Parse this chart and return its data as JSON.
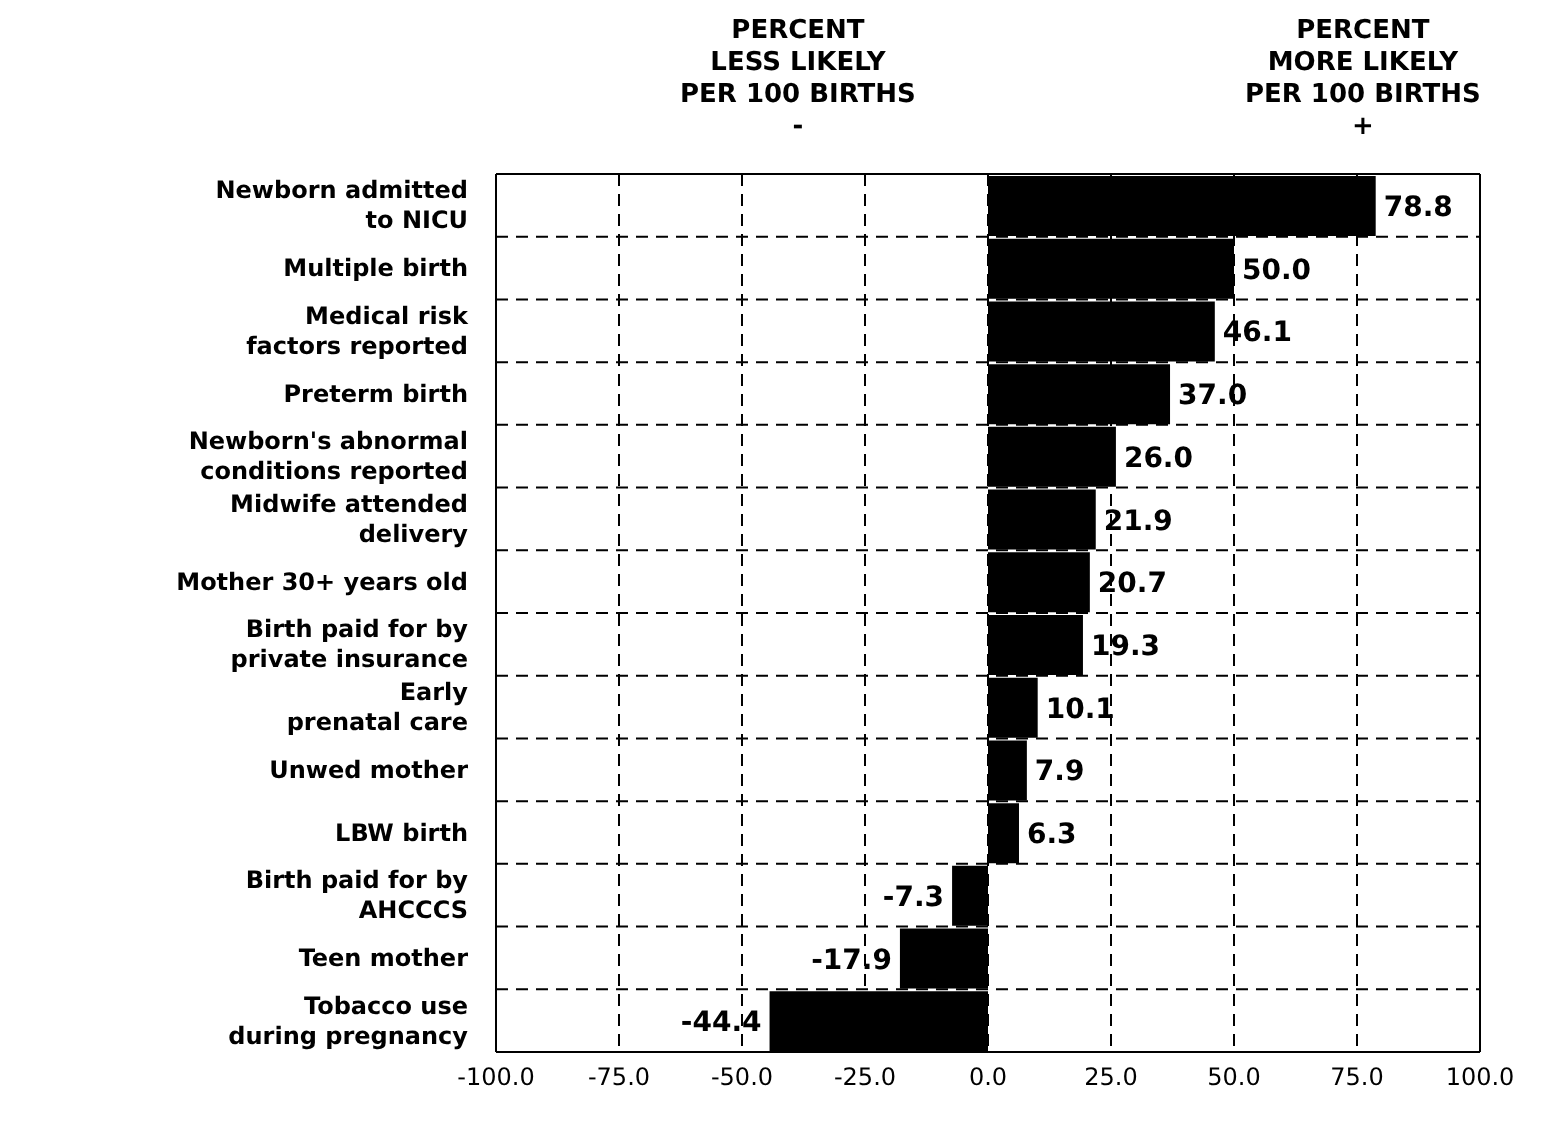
{
  "chart_data": {
    "type": "bar",
    "orientation": "horizontal",
    "categories": [
      "Newborn admitted\nto NICU",
      "Multiple birth",
      "Medical risk\nfactors reported",
      "Preterm birth",
      "Newborn's abnormal\nconditions reported",
      "Midwife attended\ndelivery",
      "Mother  30+ years old",
      "Birth paid for by\nprivate insurance",
      "Early\nprenatal care",
      "Unwed mother",
      "LBW birth",
      "Birth paid for by\nAHCCCS",
      "Teen mother",
      "Tobacco use\nduring pregnancy"
    ],
    "values": [
      78.8,
      50.0,
      46.1,
      37.0,
      26.0,
      21.9,
      20.7,
      19.3,
      10.1,
      7.9,
      6.3,
      -7.3,
      -17.9,
      -44.4
    ],
    "value_labels": [
      "78.8",
      "50.0",
      "46.1",
      "37.0",
      "26.0",
      "21.9",
      "20.7",
      "19.3",
      "10.1",
      "7.9",
      "6.3",
      "-7.3",
      "-17.9",
      "-44.4"
    ],
    "color": "#000000",
    "xlim": [
      -100,
      100
    ],
    "xticks": [
      {
        "value": -100,
        "label": "-100.0"
      },
      {
        "value": -75,
        "label": "-75.0"
      },
      {
        "value": -50,
        "label": "-50.0"
      },
      {
        "value": -25,
        "label": "-25.0"
      },
      {
        "value": 0,
        "label": "0.0"
      },
      {
        "value": 25,
        "label": "25.0"
      },
      {
        "value": 50,
        "label": "50.0"
      },
      {
        "value": 75,
        "label": "75.0"
      },
      {
        "value": 100,
        "label": "100.0"
      }
    ],
    "grid": true,
    "annotations": [
      "PERCENT\nLESS LIKELY\nPER 100 BIRTHS\n-",
      "PERCENT\nMORE LIKELY\nPER 100 BIRTHS\n+"
    ]
  }
}
